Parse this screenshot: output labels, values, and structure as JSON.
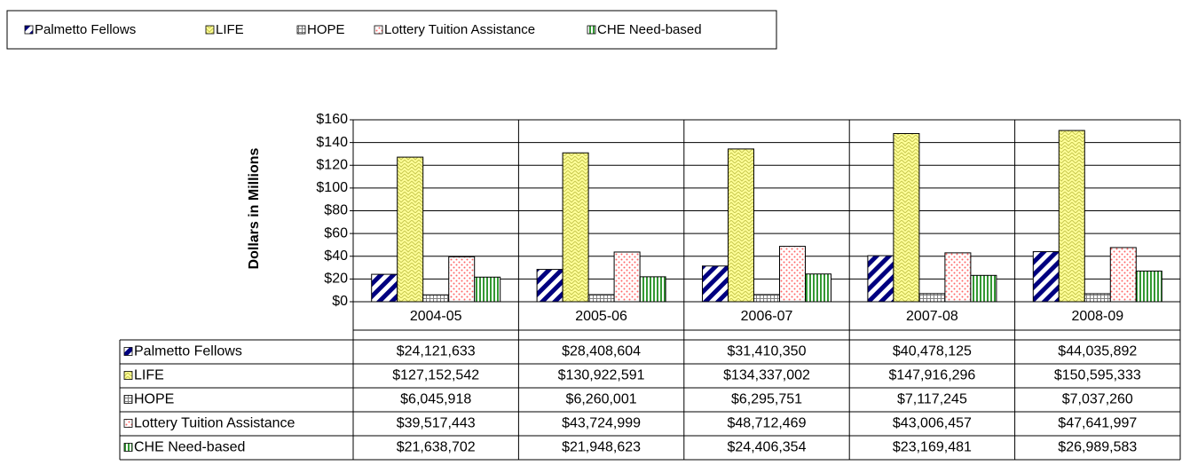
{
  "chart_data": {
    "type": "bar",
    "y_axis_label": "Dollars in Millions",
    "categories": [
      "2004-05",
      "2005-06",
      "2006-07",
      "2007-08",
      "2008-09"
    ],
    "series": [
      {
        "name": "Palmetto Fellows",
        "color": "#000080",
        "values": [
          24.121633,
          28.408604,
          31.41035,
          40.478125,
          44.035892
        ],
        "value_labels": [
          "$24,121,633",
          "$28,408,604",
          "$31,410,350",
          "$40,478,125",
          "$44,035,892"
        ]
      },
      {
        "name": "LIFE",
        "color": "#ffff99",
        "values": [
          127.152542,
          130.922591,
          134.337002,
          147.916296,
          150.595333
        ],
        "value_labels": [
          "$127,152,542",
          "$130,922,591",
          "$134,337,002",
          "$147,916,296",
          "$150,595,333"
        ]
      },
      {
        "name": "HOPE",
        "color": "#808080",
        "values": [
          6.045918,
          6.260001,
          6.295751,
          7.117245,
          7.03726
        ],
        "value_labels": [
          "$6,045,918",
          "$6,260,001",
          "$6,295,751",
          "$7,117,245",
          "$7,037,260"
        ]
      },
      {
        "name": "Lottery Tuition Assistance",
        "color": "#ff6666",
        "values": [
          39.517443,
          43.724999,
          48.712469,
          43.006457,
          47.641997
        ],
        "value_labels": [
          "$39,517,443",
          "$43,724,999",
          "$48,712,469",
          "$43,006,457",
          "$47,641,997"
        ]
      },
      {
        "name": "CHE Need-based",
        "color": "#339933",
        "values": [
          21.638702,
          21.948623,
          24.406354,
          23.169481,
          26.989583
        ],
        "value_labels": [
          "$21,638,702",
          "$21,948,623",
          "$24,406,354",
          "$23,169,481",
          "$26,989,583"
        ]
      }
    ],
    "ylim": [
      0,
      160
    ],
    "yticks": [
      {
        "value": 0,
        "label": "$0"
      },
      {
        "value": 20,
        "label": "$20"
      },
      {
        "value": 40,
        "label": "$40"
      },
      {
        "value": 60,
        "label": "$60"
      },
      {
        "value": 80,
        "label": "$80"
      },
      {
        "value": 100,
        "label": "$100"
      },
      {
        "value": 120,
        "label": "$120"
      },
      {
        "value": 140,
        "label": "$140"
      },
      {
        "value": 160,
        "label": "$160"
      }
    ],
    "grid": true,
    "legend": "top-left"
  }
}
